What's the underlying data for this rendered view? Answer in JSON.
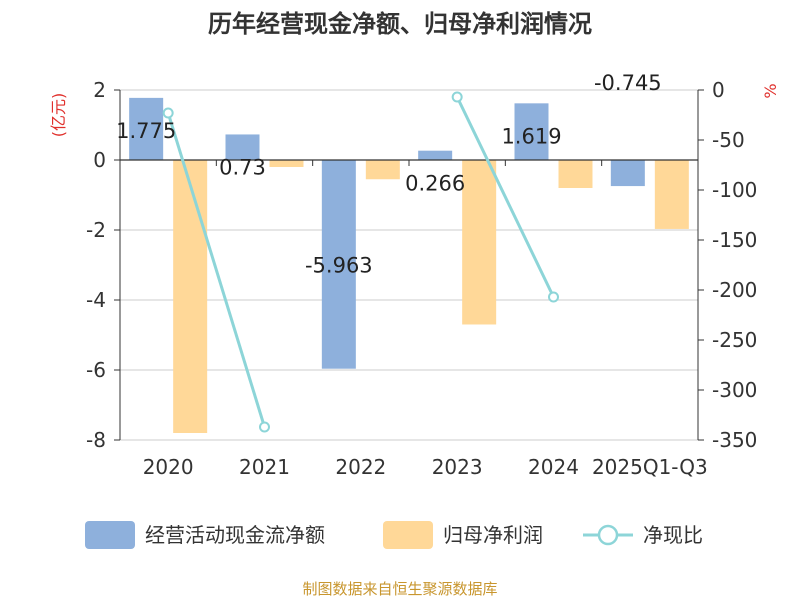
{
  "chart_data": {
    "type": "bar",
    "title": "历年经营现金净额、归母净利润情况",
    "categories": [
      "2020",
      "2021",
      "2022",
      "2023",
      "2024",
      "2025Q1-Q3"
    ],
    "series": [
      {
        "name": "经营活动现金流净额",
        "axis": "left",
        "kind": "bar",
        "values": [
          1.775,
          0.73,
          -5.963,
          0.266,
          1.619,
          -0.745
        ],
        "labels": [
          "1.775",
          "0.73",
          "-5.963",
          "0.266",
          "1.619",
          "-0.745"
        ]
      },
      {
        "name": "归母净利润",
        "axis": "left",
        "kind": "bar",
        "values": [
          -7.8,
          -0.2,
          -0.55,
          -4.7,
          -0.8,
          -1.97
        ]
      },
      {
        "name": "净现比",
        "axis": "right",
        "kind": "line",
        "values": [
          -23,
          -337,
          null,
          -7,
          -207,
          null
        ]
      }
    ],
    "left_axis": {
      "label": "(亿元)",
      "ylim": [
        -8,
        2
      ],
      "ticks": [
        2,
        0,
        -2,
        -4,
        -6,
        -8
      ]
    },
    "right_axis": {
      "label": "%",
      "ylim": [
        -350,
        0
      ],
      "ticks": [
        0,
        -50,
        -100,
        -150,
        -200,
        -250,
        -300,
        -350
      ]
    },
    "colors": {
      "cash": "#8eb0dc",
      "profit": "#ffd898",
      "ratio": "#8dd5d8",
      "axis_label": "#e0302c",
      "source": "#c8962e"
    },
    "source": "制图数据来自恒生聚源数据库"
  }
}
